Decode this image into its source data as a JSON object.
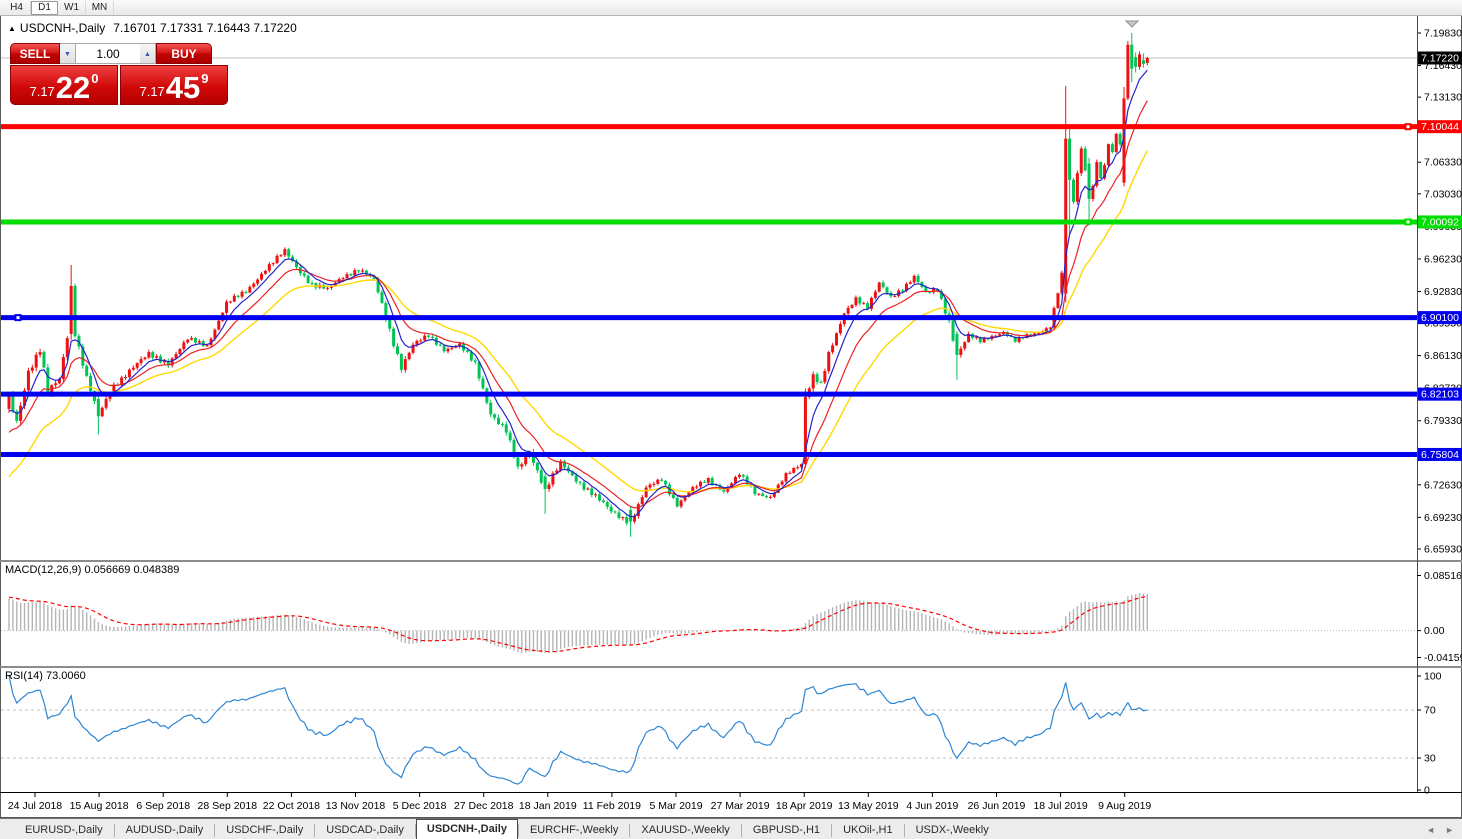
{
  "toolbar": {
    "buttons": [
      "H4",
      "D1",
      "W1",
      "MN"
    ],
    "active": "D1"
  },
  "chart": {
    "collapse_icon": "▲",
    "symbol_label": "USDCNH-,Daily",
    "ohlc": "7.16701 7.17331 7.16443 7.17220"
  },
  "trade": {
    "sell_label": "SELL",
    "buy_label": "BUY",
    "volume": "1.00",
    "spinner_down_icon": "▼",
    "spinner_up_icon": "▲",
    "sell_price": {
      "prefix": "7.17",
      "big": "22",
      "sup": "0"
    },
    "buy_price": {
      "prefix": "7.17",
      "big": "45",
      "sup": "9"
    }
  },
  "price_axis": {
    "ticks": [
      "7.19830",
      "7.16430",
      "7.13130",
      "7.09730",
      "7.06330",
      "7.03030",
      "6.99630",
      "6.96230",
      "6.92830",
      "6.89530",
      "6.86130",
      "6.82730",
      "6.79330",
      "6.75930",
      "6.72630",
      "6.69230",
      "6.65930"
    ],
    "current": {
      "label": "7.17220",
      "value": 7.1722
    }
  },
  "hlines": [
    {
      "value": 7.10044,
      "label": "7.10044",
      "color": "#ff0000",
      "handle": "right"
    },
    {
      "value": 7.00092,
      "label": "7.00092",
      "color": "#00dd00",
      "handle": "right"
    },
    {
      "value": 6.901,
      "label": "6.90100",
      "color": "#0000ee",
      "handle": "left"
    },
    {
      "value": 6.82103,
      "label": "6.82103",
      "color": "#0000ee"
    },
    {
      "value": 6.75804,
      "label": "6.75804",
      "color": "#0000ee"
    }
  ],
  "macd": {
    "name": "MACD(12,26,9)",
    "value": "0.056669",
    "signal": "0.048389",
    "ticks": [
      {
        "v": 0.085164,
        "label": "0.085164"
      },
      {
        "v": 0,
        "label": "0.00"
      },
      {
        "v": -0.041597,
        "label": "-0.041597"
      }
    ]
  },
  "rsi": {
    "name": "RSI(14)",
    "value": "73.0060",
    "levels": [
      70,
      30
    ],
    "ticks": [
      {
        "v": 100,
        "label": "100"
      },
      {
        "v": 70,
        "label": "70"
      },
      {
        "v": 30,
        "label": "30"
      },
      {
        "v": 0,
        "label": "0"
      }
    ]
  },
  "date_axis": [
    "24 Jul 2018",
    "15 Aug 2018",
    "6 Sep 2018",
    "28 Sep 2018",
    "22 Oct 2018",
    "13 Nov 2018",
    "5 Dec 2018",
    "27 Dec 2018",
    "18 Jan 2019",
    "11 Feb 2019",
    "5 Mar 2019",
    "27 Mar 2019",
    "18 Apr 2019",
    "13 May 2019",
    "4 Jun 2019",
    "26 Jun 2019",
    "18 Jul 2019",
    "9 Aug 2019"
  ],
  "tabs": {
    "items": [
      "EURUSD-,Daily",
      "AUDUSD-,Daily",
      "USDCHF-,Daily",
      "USDCAD-,Daily",
      "USDCNH-,Daily",
      "EURCHF-,Weekly",
      "XAUUSD-,Weekly",
      "GBPUSD-,H1",
      "UKOil-,H1",
      "USDX-,Weekly"
    ],
    "active": "USDCNH-,Daily",
    "scroll_left": "◄",
    "scroll_right": "►"
  },
  "chart_data": {
    "type": "candlestick",
    "symbol": "USDCNH",
    "timeframe": "Daily",
    "title": "USDCNH-,Daily",
    "ylim": [
      6.64779,
      7.21606
    ],
    "grid": false,
    "colors": {
      "up": "#ee1111",
      "down": "#00c455",
      "ma_fast": "#2323cc",
      "ma_mid": "#ee2222",
      "ma_slow": "#ffd900",
      "macd_bar": "#b4b4b4",
      "macd_signal": "#ff0000",
      "rsi_line": "#2e86d5",
      "current_price_line": "#c0c0c0"
    },
    "indicators": {
      "ma_fast_period": 6,
      "ma_mid_period": 13,
      "ma_slow_period": 26,
      "macd": [
        12,
        26,
        9
      ],
      "rsi": 14
    },
    "candles_spec": {
      "start": -60,
      "end": 293,
      "anchors": [
        [
          -60,
          6.43,
          5
        ],
        [
          -40,
          6.52,
          5
        ],
        [
          -20,
          6.665,
          5
        ],
        [
          -8,
          6.785,
          5
        ],
        [
          -1,
          6.806,
          6
        ],
        [
          0,
          6.815,
          8
        ],
        [
          2,
          6.792,
          8
        ],
        [
          5,
          6.846,
          7
        ],
        [
          8,
          6.868,
          7
        ],
        [
          10,
          6.822,
          7
        ],
        [
          13,
          6.836,
          6
        ],
        [
          15,
          6.882,
          6
        ],
        [
          16,
          6.934,
          6
        ],
        [
          17,
          6.886,
          6
        ],
        [
          20,
          6.838,
          6
        ],
        [
          23,
          6.798,
          6
        ],
        [
          27,
          6.83,
          5
        ],
        [
          31,
          6.846,
          5
        ],
        [
          36,
          6.862,
          5
        ],
        [
          41,
          6.854,
          5
        ],
        [
          46,
          6.878,
          4
        ],
        [
          51,
          6.872,
          4
        ],
        [
          56,
          6.916,
          4
        ],
        [
          61,
          6.928,
          4
        ],
        [
          66,
          6.952,
          4
        ],
        [
          71,
          6.97,
          4
        ],
        [
          74,
          6.954,
          5
        ],
        [
          78,
          6.936,
          5
        ],
        [
          82,
          6.93,
          4
        ],
        [
          86,
          6.944,
          4
        ],
        [
          90,
          6.952,
          4
        ],
        [
          94,
          6.94,
          4
        ],
        [
          98,
          6.888,
          6
        ],
        [
          101,
          6.85,
          6
        ],
        [
          104,
          6.872,
          5
        ],
        [
          108,
          6.882,
          4
        ],
        [
          112,
          6.868,
          4
        ],
        [
          116,
          6.872,
          4
        ],
        [
          120,
          6.852,
          5
        ],
        [
          124,
          6.802,
          6
        ],
        [
          128,
          6.782,
          6
        ],
        [
          131,
          6.742,
          6
        ],
        [
          134,
          6.762,
          6
        ],
        [
          138,
          6.722,
          6
        ],
        [
          142,
          6.748,
          5
        ],
        [
          146,
          6.732,
          5
        ],
        [
          150,
          6.718,
          5
        ],
        [
          155,
          6.698,
          5
        ],
        [
          160,
          6.688,
          5
        ],
        [
          164,
          6.722,
          5
        ],
        [
          168,
          6.732,
          4
        ],
        [
          172,
          6.706,
          4
        ],
        [
          176,
          6.722,
          4
        ],
        [
          180,
          6.732,
          3.5
        ],
        [
          184,
          6.72,
          3.5
        ],
        [
          188,
          6.737,
          3.5
        ],
        [
          192,
          6.718,
          4
        ],
        [
          196,
          6.714,
          3.5
        ],
        [
          200,
          6.736,
          3.5
        ],
        [
          204,
          6.748,
          3.5
        ],
        [
          205,
          6.818,
          6
        ],
        [
          207,
          6.842,
          6
        ],
        [
          209,
          6.832,
          5
        ],
        [
          211,
          6.862,
          5
        ],
        [
          213,
          6.882,
          5
        ],
        [
          215,
          6.905,
          5
        ],
        [
          218,
          6.922,
          4
        ],
        [
          221,
          6.912,
          4
        ],
        [
          224,
          6.936,
          4
        ],
        [
          227,
          6.922,
          4
        ],
        [
          230,
          6.932,
          4
        ],
        [
          233,
          6.944,
          4
        ],
        [
          236,
          6.926,
          4
        ],
        [
          239,
          6.93,
          4
        ],
        [
          242,
          6.898,
          6
        ],
        [
          244,
          6.862,
          6
        ],
        [
          247,
          6.882,
          4
        ],
        [
          250,
          6.876,
          3.5
        ],
        [
          253,
          6.882,
          3
        ],
        [
          256,
          6.886,
          3
        ],
        [
          259,
          6.876,
          3
        ],
        [
          262,
          6.882,
          3
        ],
        [
          265,
          6.886,
          3
        ],
        [
          268,
          6.892,
          3
        ],
        [
          271,
          6.945,
          4
        ],
        [
          272,
          7.088,
          9
        ],
        [
          273,
          7.045,
          8
        ],
        [
          274,
          7.022,
          7
        ],
        [
          275,
          7.052,
          6
        ],
        [
          276,
          7.078,
          6
        ],
        [
          277,
          7.058,
          6
        ],
        [
          278,
          7.025,
          6
        ],
        [
          279,
          7.042,
          5
        ],
        [
          280,
          7.062,
          5
        ],
        [
          281,
          7.048,
          4
        ],
        [
          282,
          7.058,
          4
        ],
        [
          283,
          7.082,
          4
        ],
        [
          284,
          7.072,
          4
        ],
        [
          285,
          7.092,
          4
        ],
        [
          286,
          7.082,
          4
        ],
        [
          287,
          7.13,
          5
        ],
        [
          288,
          7.186,
          5
        ],
        [
          289,
          7.161,
          4
        ],
        [
          290,
          7.163,
          3
        ],
        [
          291,
          7.176,
          3
        ],
        [
          292,
          7.166,
          3
        ],
        [
          293,
          7.1722,
          3
        ]
      ],
      "overrides": {
        "16": [
          6.884,
          6.956,
          6.878,
          6.934
        ],
        "23": [
          6.816,
          6.82,
          6.779,
          6.798
        ],
        "138": [
          6.735,
          6.738,
          6.696,
          6.722
        ],
        "160": [
          6.7,
          6.703,
          6.672,
          6.688
        ],
        "205": [
          6.748,
          6.827,
          6.744,
          6.818
        ],
        "244": [
          6.884,
          6.887,
          6.836,
          6.862
        ],
        "272": [
          6.926,
          7.143,
          6.917,
          7.088
        ],
        "273": [
          7.088,
          7.102,
          6.988,
          7.045
        ],
        "278": [
          7.062,
          7.068,
          6.997,
          7.025
        ],
        "287": [
          7.042,
          7.142,
          7.038,
          7.13
        ],
        "288": [
          7.13,
          7.19,
          7.128,
          7.186
        ],
        "289": [
          7.186,
          7.1983,
          7.147,
          7.161
        ],
        "290": [
          7.173,
          7.178,
          7.157,
          7.163
        ],
        "291": [
          7.163,
          7.179,
          7.16,
          7.176
        ],
        "292": [
          7.17,
          7.177,
          7.162,
          7.166
        ],
        "293": [
          7.16701,
          7.17331,
          7.16443,
          7.1722
        ]
      }
    }
  }
}
